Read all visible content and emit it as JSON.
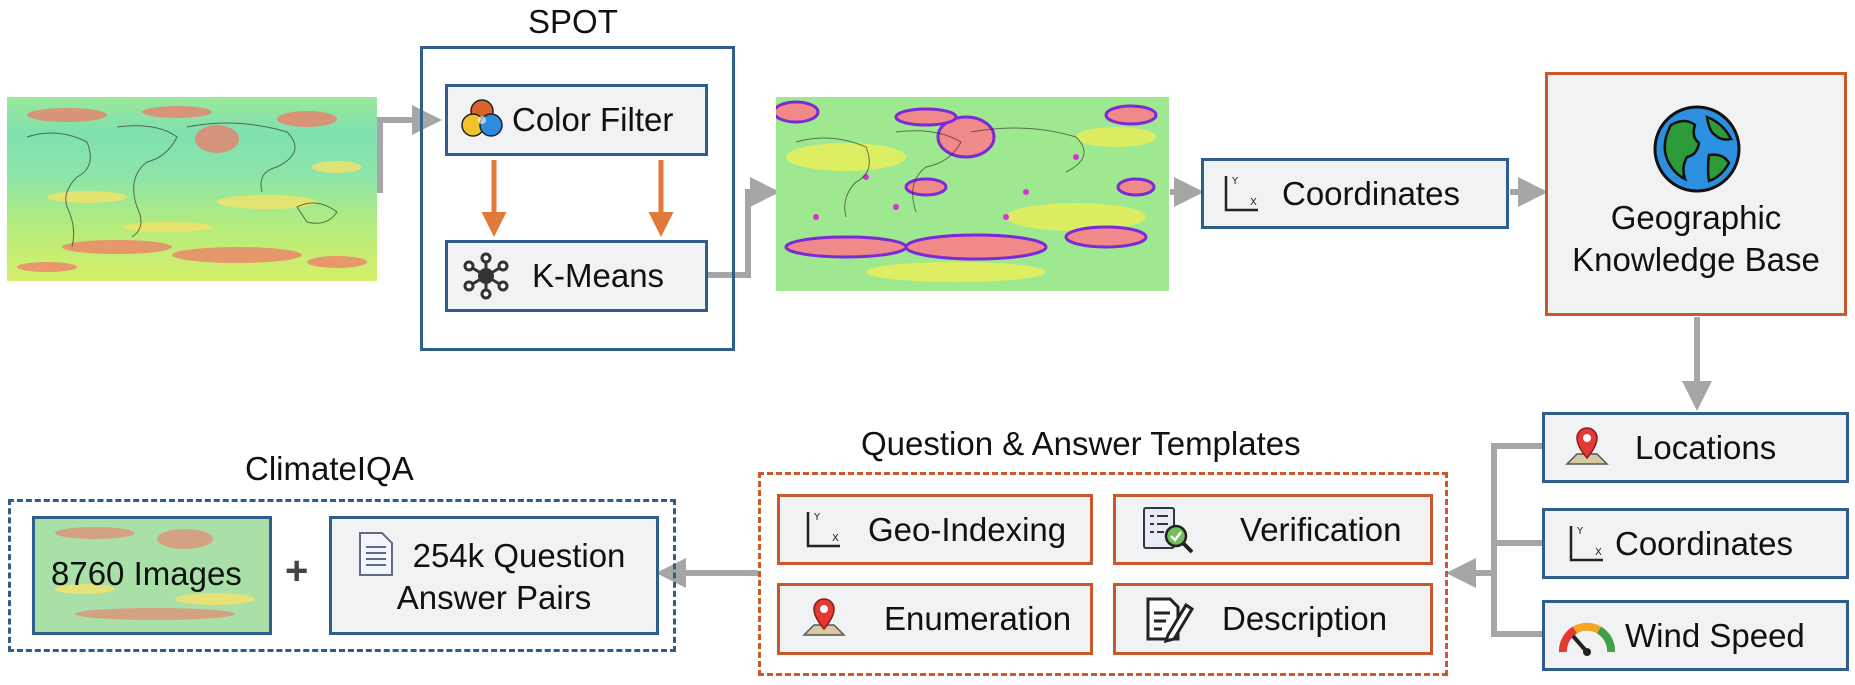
{
  "spot": {
    "title": "SPOT",
    "color_filter": "Color Filter",
    "kmeans": "K-Means"
  },
  "coordinates_box": "Coordinates",
  "knowledge_base": {
    "line1": "Geographic",
    "line2": "Knowledge Base"
  },
  "outputs": {
    "locations": "Locations",
    "coordinates": "Coordinates",
    "wind_speed": "Wind Speed"
  },
  "templates": {
    "title": "Question & Answer Templates",
    "geo_indexing": "Geo-Indexing",
    "verification": "Verification",
    "enumeration": "Enumeration",
    "description": "Description"
  },
  "dataset": {
    "title": "ClimateIQA",
    "images": "8760 Images",
    "plus": "+",
    "qa_line1": "254k Question",
    "qa_line2": "Answer Pairs"
  },
  "colors": {
    "blue_border": "#2f5d8c",
    "orange_border": "#c9582a",
    "arrow_gray": "#a6a6a6",
    "arrow_orange": "#e07a3a"
  },
  "icons": [
    "color-filter-icon",
    "network-icon",
    "axes-icon",
    "globe-icon",
    "map-pin-icon",
    "gauge-icon",
    "checklist-icon",
    "edit-document-icon",
    "document-icon"
  ]
}
